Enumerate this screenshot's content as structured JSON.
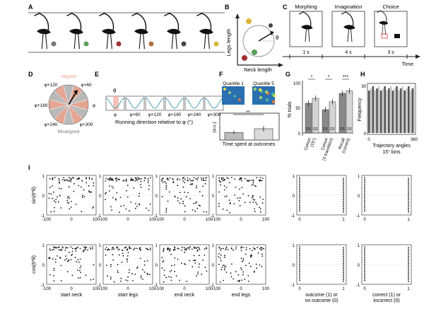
{
  "panel_letters": [
    "A",
    "B",
    "C",
    "D",
    "E",
    "F",
    "G",
    "H",
    "I"
  ],
  "panelB": {
    "y_label": "Legs length",
    "x_label": "Neck length",
    "theta": "θ"
  },
  "panelC": {
    "steps": [
      "Morphing",
      "Imagination",
      "Choice"
    ],
    "durations": [
      "1 s",
      "4 s",
      "3 s"
    ],
    "axis": "Time"
  },
  "panelD": {
    "labels": {
      "aligned": "Aligned",
      "misaligned": "Misaligned",
      "phi": "φ",
      "p60": "φ+60",
      "p120": "φ+120",
      "p180": "φ+180",
      "p240": "φ+240",
      "p300": "φ+300"
    }
  },
  "panelE": {
    "theta": "θ",
    "ticks": [
      "φ",
      "φ+60",
      "φ+120",
      "φ+180",
      "φ+240",
      "φ+300"
    ],
    "xlabel": "Running direction relative to φ (°)"
  },
  "panelF": {
    "q1": "Quantile 1",
    "q5": "Quantile 5",
    "ylabel": "(a.u.)",
    "sig": "**",
    "xlabel": "Time spent at outcomes",
    "chart_data": {
      "type": "bar",
      "categories": [
        "Quantile 1",
        "Quantile 5"
      ],
      "values": [
        0.28,
        0.42
      ],
      "errors": [
        0.07,
        0.1
      ],
      "ylim": [
        0,
        1
      ]
    }
  },
  "panelG": {
    "ylabel": "% trials",
    "ticks": [
      "100",
      "50",
      "0"
    ],
    "sig": [
      "*",
      "*",
      "***"
    ],
    "bar_labels": [
      "D1",
      "D2",
      "D1",
      "D2",
      "D1",
      "D2"
    ],
    "group_labels": [
      "Cohort",
      "(15°)",
      "Cohort",
      "(1 transition)",
      "Recall",
      "(correct)"
    ],
    "chart_data": {
      "type": "bar",
      "categories": [
        "Cohort (15°) D1",
        "Cohort (15°) D2",
        "Cohort (1 transition) D1",
        "Cohort (1 transition) D2",
        "Recall (correct) D1",
        "Recall (correct) D2"
      ],
      "values": [
        60,
        70,
        47,
        63,
        80,
        85
      ],
      "ylim": [
        0,
        100
      ],
      "ylabel": "% trials"
    }
  },
  "panelH": {
    "ylabel": "Frequency",
    "ticks_y": [
      "30",
      "0"
    ],
    "ticks_x": [
      "0",
      "360"
    ],
    "xlabel1": "Trajectory angles",
    "xlabel2": "15° bins"
  },
  "panelI": {
    "row_labels": [
      "sin(6*θ)",
      "cos(6*θ)"
    ],
    "y_ticks": [
      "1",
      "0",
      "-1"
    ],
    "x_ticks_num": [
      "-100",
      "0",
      "100"
    ],
    "x_ticks_bin": [
      "0",
      "1"
    ],
    "xlabels": [
      "start neck",
      "start legs",
      "end neck",
      "end legs",
      "outcome (1) or\nno outcome (0)",
      "correct (1) or\nincorrect (0)"
    ]
  }
}
